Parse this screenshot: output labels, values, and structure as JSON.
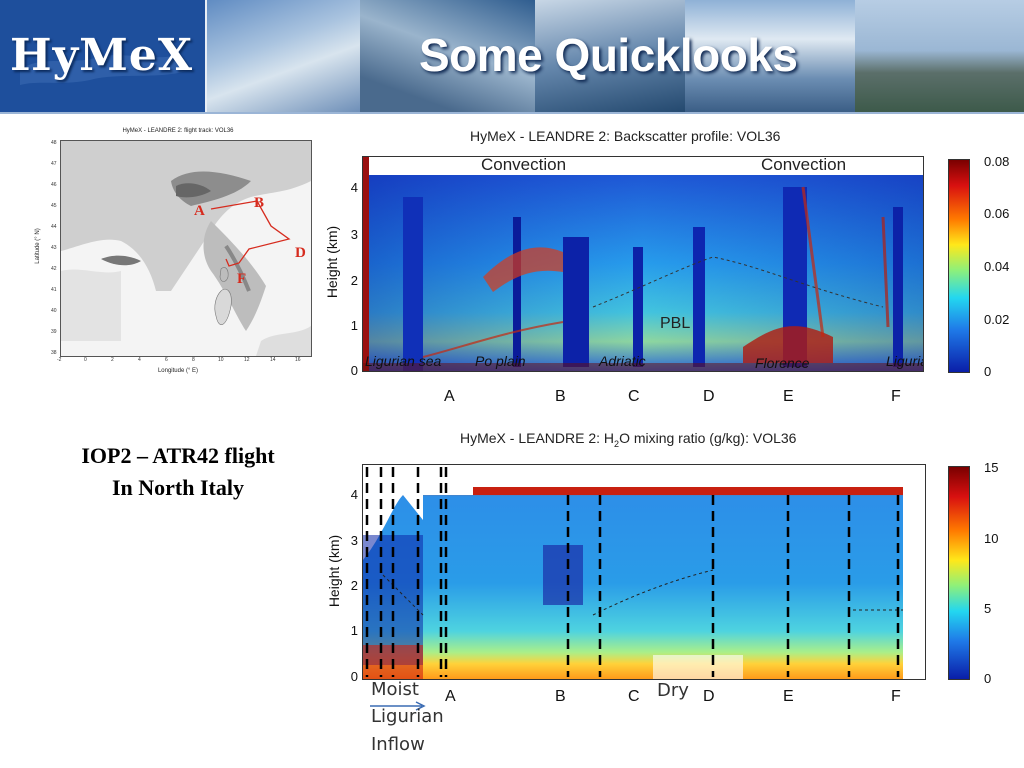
{
  "header": {
    "logo_text": "HyMeX",
    "slide_title": "Some Quicklooks"
  },
  "map": {
    "title": "HyMeX - LEANDRE 2: flight track: VOL36",
    "xlabel": "Longitude (° E)",
    "ylabel": "Latitude (° N)",
    "xticks": [
      "-2",
      "0",
      "2",
      "4",
      "6",
      "8",
      "10",
      "12",
      "14",
      "16"
    ],
    "yticks": [
      "48",
      "47",
      "46",
      "45",
      "44",
      "43",
      "42",
      "41",
      "40",
      "39",
      "38"
    ],
    "points": [
      "A",
      "B",
      "D",
      "F"
    ]
  },
  "caption": {
    "line1": "IOP2 – ATR42 flight",
    "line2": "In North Italy"
  },
  "backscatter": {
    "title": "HyMeX - LEANDRE 2: Backscatter profile: VOL36",
    "ylabel": "Height (km)",
    "yticks": [
      "4",
      "3",
      "2",
      "1",
      "0"
    ],
    "colorbar_ticks": [
      "0.08",
      "0.06",
      "0.04",
      "0.02",
      "0"
    ],
    "annotations": [
      "Convection",
      "Convection",
      "PBL"
    ],
    "regions": [
      "Ligurian sea",
      "Po plain",
      "Adriatic",
      "Florence",
      "Ligurian"
    ],
    "locations": [
      "A",
      "B",
      "C",
      "D",
      "E",
      "F"
    ]
  },
  "water_vapor": {
    "title_pre": "HyMeX - LEANDRE 2: H",
    "title_sub": "2",
    "title_post": "O mixing ratio (g/kg): VOL36",
    "ylabel": "Height (km)",
    "yticks": [
      "4",
      "3",
      "2",
      "1",
      "0"
    ],
    "colorbar_ticks": [
      "15",
      "10",
      "5",
      "0"
    ],
    "locations": [
      "A",
      "B",
      "C",
      "D",
      "E",
      "F"
    ],
    "notes": {
      "moist": "Moist",
      "ligurian": "Ligurian",
      "inflow": "Inflow",
      "dry": "Dry"
    }
  },
  "colors": {
    "banner_blue": "#1e4f9c",
    "track_red": "#d62b1e"
  }
}
